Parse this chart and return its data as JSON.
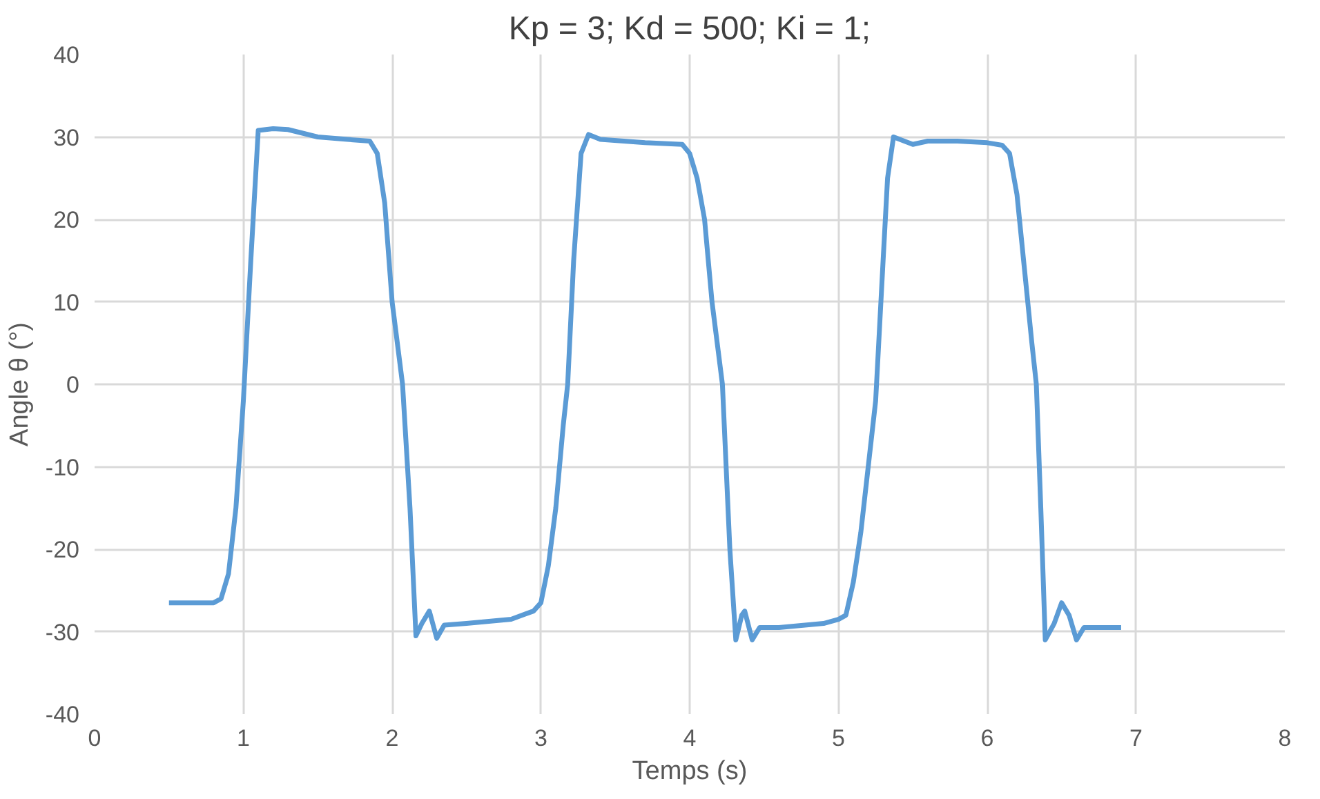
{
  "chart_data": {
    "type": "line",
    "title": "Kp = 3; Kd = 500; Ki = 1;",
    "xlabel": "Temps (s)",
    "ylabel": "Angle θ (°)",
    "xlim": [
      0,
      8
    ],
    "ylim": [
      -40,
      40
    ],
    "xticks": [
      0,
      1,
      2,
      3,
      4,
      5,
      6,
      7,
      8
    ],
    "yticks": [
      -40,
      -30,
      -20,
      -10,
      0,
      10,
      20,
      30,
      40
    ],
    "grid": true,
    "series": [
      {
        "color": "#5b9bd5",
        "x": [
          0.5,
          0.8,
          0.85,
          0.9,
          0.95,
          1.0,
          1.05,
          1.1,
          1.2,
          1.3,
          1.5,
          1.7,
          1.85,
          1.9,
          1.95,
          2.0,
          2.07,
          2.12,
          2.16,
          2.2,
          2.25,
          2.3,
          2.35,
          2.5,
          2.8,
          2.95,
          3.0,
          3.05,
          3.1,
          3.15,
          3.18,
          3.22,
          3.27,
          3.32,
          3.4,
          3.7,
          3.95,
          4.0,
          4.05,
          4.1,
          4.15,
          4.22,
          4.27,
          4.31,
          4.35,
          4.37,
          4.42,
          4.47,
          4.6,
          4.9,
          5.0,
          5.05,
          5.1,
          5.15,
          5.2,
          5.25,
          5.3,
          5.33,
          5.37,
          5.5,
          5.6,
          5.8,
          6.0,
          6.1,
          6.15,
          6.2,
          6.25,
          6.3,
          6.33,
          6.36,
          6.39,
          6.45,
          6.5,
          6.55,
          6.6,
          6.65,
          6.7,
          6.9
        ],
        "values": [
          -26.5,
          -26.5,
          -26,
          -23,
          -15,
          -2,
          15,
          30.8,
          31,
          30.9,
          30,
          29.7,
          29.5,
          28,
          22,
          10,
          0,
          -15,
          -30.5,
          -29,
          -27.5,
          -30.8,
          -29.2,
          -29,
          -28.5,
          -27.5,
          -26.5,
          -22,
          -15,
          -5,
          0,
          15,
          28,
          30.3,
          29.7,
          29.3,
          29.1,
          28,
          25,
          20,
          10,
          0,
          -20,
          -31,
          -28,
          -27.5,
          -31,
          -29.5,
          -29.5,
          -29,
          -28.5,
          -28,
          -24,
          -18,
          -10,
          -2,
          15,
          25,
          30,
          29.1,
          29.5,
          29.5,
          29.3,
          29,
          28,
          23,
          14,
          5,
          0,
          -15,
          -31,
          -29,
          -26.5,
          -28,
          -31,
          -29.5,
          -29.5,
          -29.5
        ]
      }
    ]
  }
}
